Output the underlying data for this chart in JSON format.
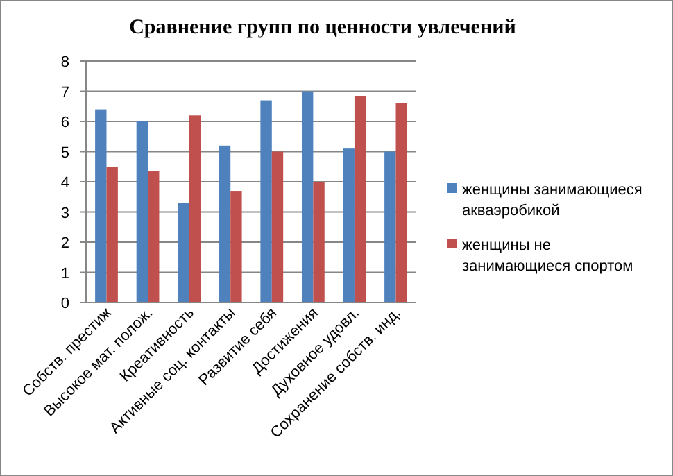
{
  "chart_data": {
    "type": "bar",
    "title": "Сравнение  групп по ценности  увлечений",
    "categories": [
      "Собств. престиж",
      "Высокое мат. полож.",
      "Креативность",
      "Активные соц. контакты",
      "Развитие себя",
      "Достижения",
      "Духовное удовл.",
      "Сохранение собств. инд."
    ],
    "series": [
      {
        "name": "женщины занимающиеся акваэробикой",
        "color": "#4f81bd",
        "values": [
          6.4,
          6.0,
          3.3,
          5.2,
          6.7,
          7.0,
          5.1,
          5.0
        ]
      },
      {
        "name": "женщины не занимающиеся спортом",
        "color": "#c0504d",
        "values": [
          4.5,
          4.35,
          6.2,
          3.7,
          5.0,
          4.0,
          6.85,
          6.6
        ]
      }
    ],
    "ylim": [
      0,
      8
    ],
    "yticks": [
      0,
      1,
      2,
      3,
      4,
      5,
      6,
      7,
      8
    ],
    "grid": "y",
    "legend": "right"
  }
}
